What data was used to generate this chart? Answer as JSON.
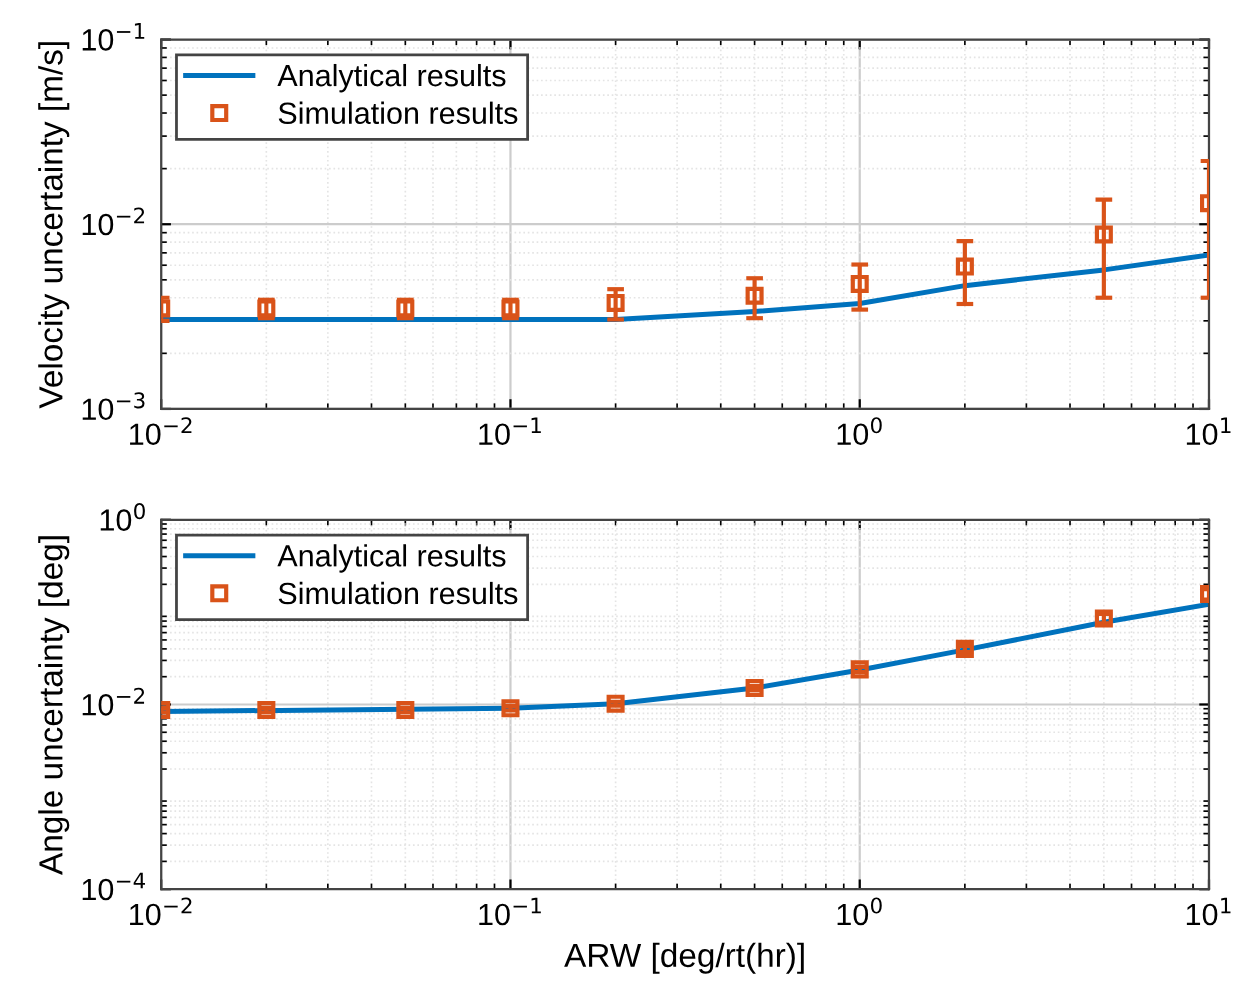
{
  "chart_data": [
    {
      "type": "line",
      "ylabel": "Velocity uncertainty [m/s]",
      "log": "xy",
      "grid": true,
      "legend": "top left",
      "xlim": [
        0.01,
        10
      ],
      "xticks": [
        {
          "value": 0.01,
          "label": "10$^{−2}$"
        },
        {
          "value": 0.1,
          "label": "10$^{−1}$"
        },
        {
          "value": 1,
          "label": "10$^{0}$"
        },
        {
          "value": 10,
          "label": "10$^{1}$"
        }
      ],
      "ylim": [
        0.001,
        0.1
      ],
      "yticks": [
        {
          "value": 0.001,
          "label": "10$^{−3}$"
        },
        {
          "value": 0.01,
          "label": "10$^{−2}$"
        },
        {
          "value": 0.1,
          "label": "10$^{−1}$"
        }
      ],
      "series": [
        {
          "name": "Analytical results",
          "color": "#0072bd",
          "marker": "none",
          "line_style": "solid",
          "x": [
            0.01,
            0.2,
            0.5,
            1,
            2,
            5,
            10
          ],
          "values": [
            0.00305,
            0.00305,
            0.00337,
            0.00372,
            0.00465,
            0.00566,
            0.00682
          ]
        },
        {
          "name": "Simulation results",
          "type": "scatter",
          "color": "#d95319",
          "marker": "square",
          "x": [
            0.01,
            0.02,
            0.05,
            0.1,
            0.2,
            0.5,
            1,
            2,
            5,
            10
          ],
          "values": [
            0.0035,
            0.0035,
            0.0035,
            0.0035,
            0.00375,
            0.0041,
            0.00475,
            0.0059,
            0.0088,
            0.013
          ],
          "errors": [
            0.0005,
            0.0004,
            0.0004,
            0.0004,
            0.0007,
            0.001,
            0.0013,
            0.0022,
            0.0048,
            0.009
          ]
        }
      ]
    },
    {
      "type": "line",
      "xlabel": "ARW [deg/rt(hr)]",
      "ylabel": "Angle uncertainty [deg]",
      "log": "xy",
      "grid": true,
      "legend": "top left",
      "xlim": [
        0.01,
        10
      ],
      "xticks": [
        {
          "value": 0.01,
          "label": "10$^{−2}$"
        },
        {
          "value": 0.1,
          "label": "10$^{−1}$"
        },
        {
          "value": 1,
          "label": "10$^{0}$"
        },
        {
          "value": 10,
          "label": "10$^{1}$"
        }
      ],
      "ylim": [
        0.0001,
        1
      ],
      "yticks": [
        {
          "value": 0.0001,
          "label": "10$^{−4}$"
        },
        {
          "value": 0.01,
          "label": "10$^{−2}$"
        },
        {
          "value": 1,
          "label": "10$^{0}$"
        }
      ],
      "series": [
        {
          "name": "Analytical results",
          "color": "#0072bd",
          "marker": "none",
          "line_style": "solid",
          "x": [
            0.01,
            0.1,
            0.2,
            0.5,
            1,
            2,
            5,
            10
          ],
          "values": [
            0.0084,
            0.0091,
            0.0102,
            0.0151,
            0.0236,
            0.039,
            0.0776,
            0.1216
          ]
        },
        {
          "name": "Simulation results",
          "type": "scatter",
          "color": "#d95319",
          "marker": "square",
          "x": [
            0.01,
            0.02,
            0.05,
            0.1,
            0.2,
            0.5,
            1,
            2,
            5,
            10
          ],
          "values": [
            0.0087,
            0.0087,
            0.0087,
            0.0091,
            0.0102,
            0.0151,
            0.024,
            0.04,
            0.0855,
            0.157
          ],
          "errors": [
            0.0005,
            0.0005,
            0.0005,
            0.0005,
            0.0005,
            0.0008,
            0.0015,
            0.003,
            0.01,
            0.02
          ]
        }
      ]
    }
  ]
}
